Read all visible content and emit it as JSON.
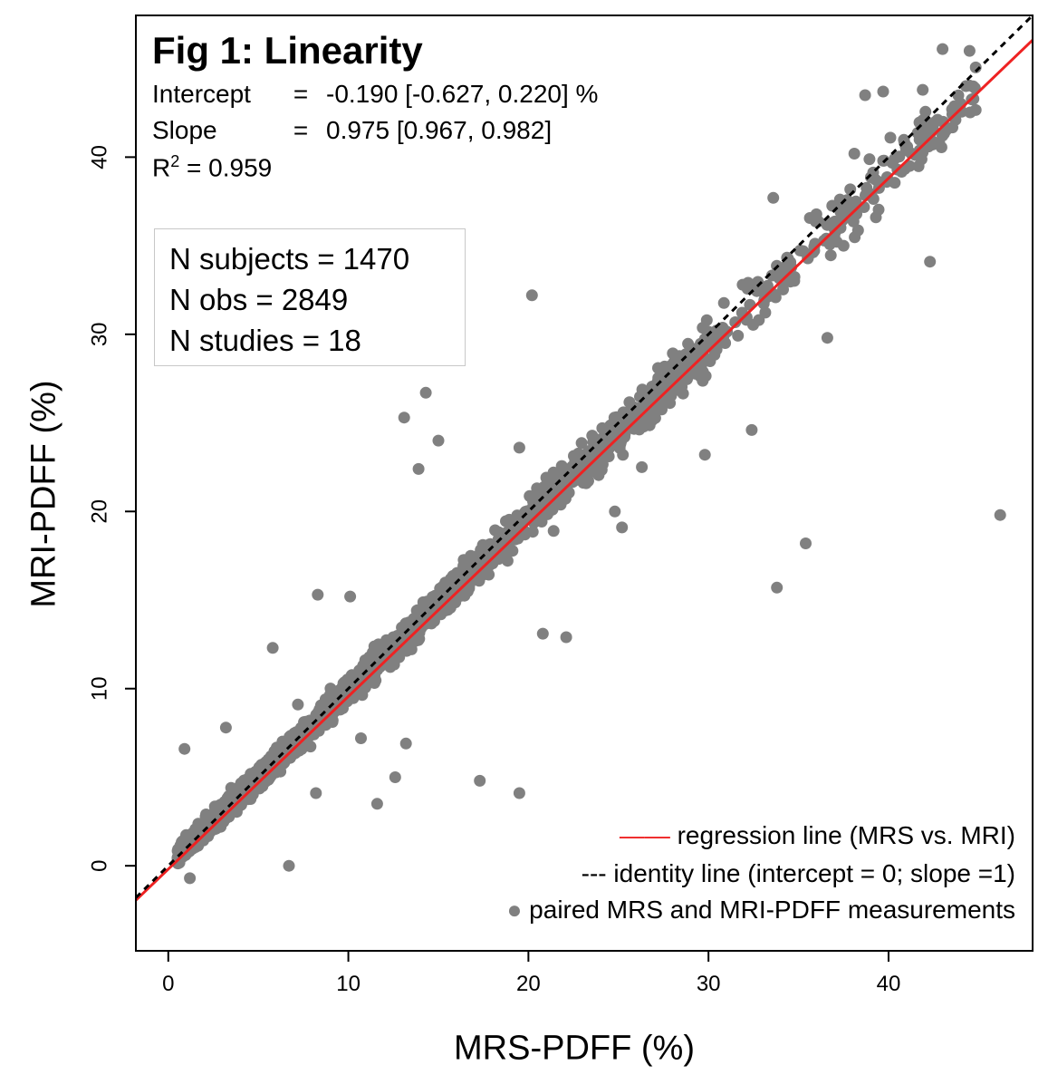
{
  "chart_data": {
    "type": "scatter",
    "title": "Fig 1: Linearity",
    "xlabel": "MRS-PDFF (%)",
    "ylabel": "MRI-PDFF (%)",
    "xlim": [
      -1.8,
      48
    ],
    "ylim": [
      -4.8,
      48
    ],
    "xticks": [
      0,
      10,
      20,
      30,
      40
    ],
    "yticks": [
      0,
      10,
      20,
      30,
      40
    ],
    "stats": {
      "intercept_label": "Intercept",
      "intercept_value": "-0.190 [-0.627, 0.220] %",
      "slope_label": "Slope",
      "slope_value": "0.975 [0.967, 0.982]",
      "r2_label": "R",
      "r2_sup": "2",
      "r2_value": "= 0.959",
      "eq": "="
    },
    "counts": {
      "subjects": "N subjects = 1470",
      "obs": "N obs =  2849",
      "studies": "N studies = 18"
    },
    "regression": {
      "intercept": -0.19,
      "slope": 0.975,
      "color": "#ee2222"
    },
    "identity": {
      "intercept": 0,
      "slope": 1,
      "color": "#000000"
    },
    "point_color": "#808080",
    "legend": [
      {
        "symbol": "——",
        "label": "regression line (MRS vs. MRI)"
      },
      {
        "symbol": "---",
        "label": "identity line (intercept = 0; slope =1)"
      },
      {
        "symbol": "●",
        "label": "paired MRS and MRI-PDFF measurements"
      }
    ],
    "series": [
      {
        "name": "paired MRS and MRI-PDFF measurements",
        "outliers": [
          [
            46.2,
            19.8
          ],
          [
            35.4,
            18.2
          ],
          [
            33.8,
            15.7
          ],
          [
            17.3,
            4.8
          ],
          [
            19.5,
            4.1
          ],
          [
            20.2,
            32.2
          ],
          [
            13.1,
            25.3
          ],
          [
            13.9,
            22.4
          ],
          [
            32.4,
            24.6
          ],
          [
            42.3,
            34.1
          ],
          [
            36.6,
            29.8
          ],
          [
            39.3,
            36.6
          ],
          [
            38.7,
            43.5
          ],
          [
            43.0,
            46.1
          ],
          [
            44.5,
            46.0
          ],
          [
            44.7,
            44.0
          ],
          [
            41.9,
            43.8
          ],
          [
            22.1,
            12.9
          ],
          [
            20.8,
            13.1
          ],
          [
            6.7,
            0.0
          ],
          [
            5.8,
            12.3
          ],
          [
            3.2,
            7.8
          ],
          [
            0.9,
            6.6
          ],
          [
            11.6,
            3.5
          ],
          [
            13.2,
            6.9
          ],
          [
            10.7,
            7.2
          ],
          [
            12.6,
            5.0
          ],
          [
            1.2,
            -0.7
          ],
          [
            8.3,
            15.3
          ],
          [
            10.1,
            15.2
          ],
          [
            29.8,
            23.2
          ],
          [
            31.9,
            32.8
          ],
          [
            33.6,
            37.7
          ],
          [
            38.1,
            40.2
          ],
          [
            40.1,
            41.1
          ],
          [
            24.8,
            20.0
          ],
          [
            25.2,
            19.1
          ],
          [
            27.2,
            28.1
          ],
          [
            15.0,
            24.0
          ],
          [
            24.1,
            24.7
          ],
          [
            26.3,
            22.5
          ],
          [
            19.5,
            23.6
          ],
          [
            16.3,
            15.3
          ],
          [
            7.2,
            9.1
          ],
          [
            14.3,
            26.7
          ],
          [
            39.7,
            43.7
          ],
          [
            39.9,
            38.6
          ],
          [
            37.5,
            35.0
          ],
          [
            21.4,
            18.9
          ],
          [
            8.2,
            4.1
          ]
        ]
      }
    ]
  }
}
